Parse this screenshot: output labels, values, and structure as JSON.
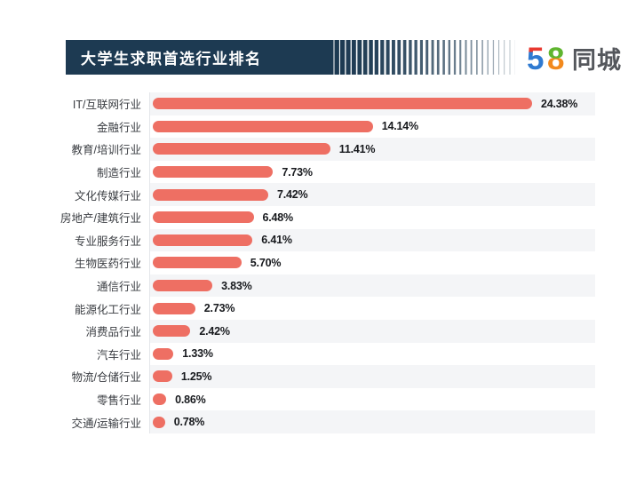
{
  "banner": {
    "title": "大学生求职首选行业排名",
    "bg_color": "#1d3a52",
    "title_color": "#ffffff"
  },
  "logo": {
    "five": "5",
    "eight": "8",
    "suffix": "同城",
    "colors": {
      "five_top_red": "#e8382f",
      "five_body_blue": "#2f7ad1",
      "eight_top_green": "#5fb52f",
      "eight_bottom_orange": "#f2891d",
      "suffix_gray": "#54575c"
    }
  },
  "chart_data": {
    "type": "bar",
    "orientation": "horizontal",
    "title": "大学生求职首选行业排名",
    "xlabel": "",
    "ylabel": "",
    "xlim": [
      0,
      25
    ],
    "grid": false,
    "legend": false,
    "bar_color": "#ee6f63",
    "row_alt_color": "#f4f5f7",
    "axis_line_color": "#e3e6ea",
    "categories": [
      "IT/互联网行业",
      "金融行业",
      "教育/培训行业",
      "制造行业",
      "文化传媒行业",
      "房地产/建筑行业",
      "专业服务行业",
      "生物医药行业",
      "通信行业",
      "能源化工行业",
      "消费品行业",
      "汽车行业",
      "物流/仓储行业",
      "零售行业",
      "交通/运输行业"
    ],
    "values": [
      24.38,
      14.14,
      11.41,
      7.73,
      7.42,
      6.48,
      6.41,
      5.7,
      3.83,
      2.73,
      2.42,
      1.33,
      1.25,
      0.86,
      0.78
    ],
    "display_values": [
      "24.38%",
      "14.14%",
      "11.41%",
      "7.73%",
      "7.42%",
      "6.48%",
      "6.41%",
      "5.70%",
      "3.83%",
      "2.73%",
      "2.42%",
      "1.33%",
      "1.25%",
      "0.86%",
      "0.78%"
    ]
  }
}
